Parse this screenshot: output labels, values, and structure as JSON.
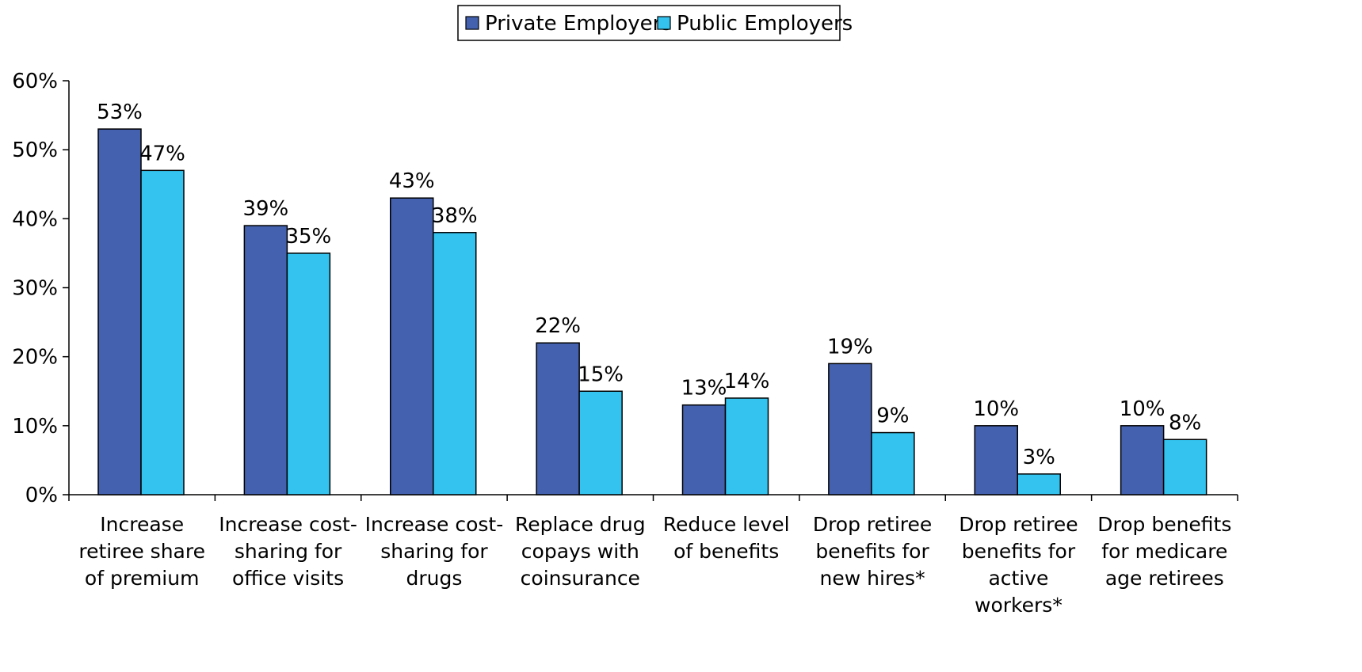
{
  "chart_data": {
    "type": "bar",
    "categories": [
      [
        "Increase",
        "retiree share",
        "of premium"
      ],
      [
        "Increase cost-",
        "sharing for",
        "office visits"
      ],
      [
        "Increase cost-",
        "sharing for",
        "drugs"
      ],
      [
        "Replace drug",
        "copays with",
        "coinsurance"
      ],
      [
        "Reduce level",
        "of benefits"
      ],
      [
        "Drop retiree",
        "benefits for",
        "new hires*"
      ],
      [
        "Drop retiree",
        "benefits for",
        "active",
        "workers*"
      ],
      [
        "Drop benefits",
        "for medicare",
        "age retirees"
      ]
    ],
    "series": [
      {
        "name": "Private Employers",
        "color": "#4361AE",
        "values": [
          53,
          39,
          43,
          22,
          13,
          19,
          10,
          10
        ],
        "labels": [
          "53%",
          "39%",
          "43%",
          "22%",
          "13%",
          "19%",
          "10%",
          "10%"
        ]
      },
      {
        "name": "Public Employers",
        "color": "#33C3EE",
        "values": [
          47,
          35,
          38,
          15,
          14,
          9,
          3,
          8
        ],
        "labels": [
          "47%",
          "35%",
          "38%",
          "15%",
          "14%",
          "9%",
          "3%",
          "8%"
        ]
      }
    ],
    "ylim": [
      0,
      60
    ],
    "yticks": [
      0,
      10,
      20,
      30,
      40,
      50,
      60
    ],
    "ytick_labels": [
      "0%",
      "10%",
      "20%",
      "30%",
      "40%",
      "50%",
      "60%"
    ],
    "grid": false,
    "legend_position": "top-center",
    "xlabel": "",
    "ylabel": ""
  }
}
